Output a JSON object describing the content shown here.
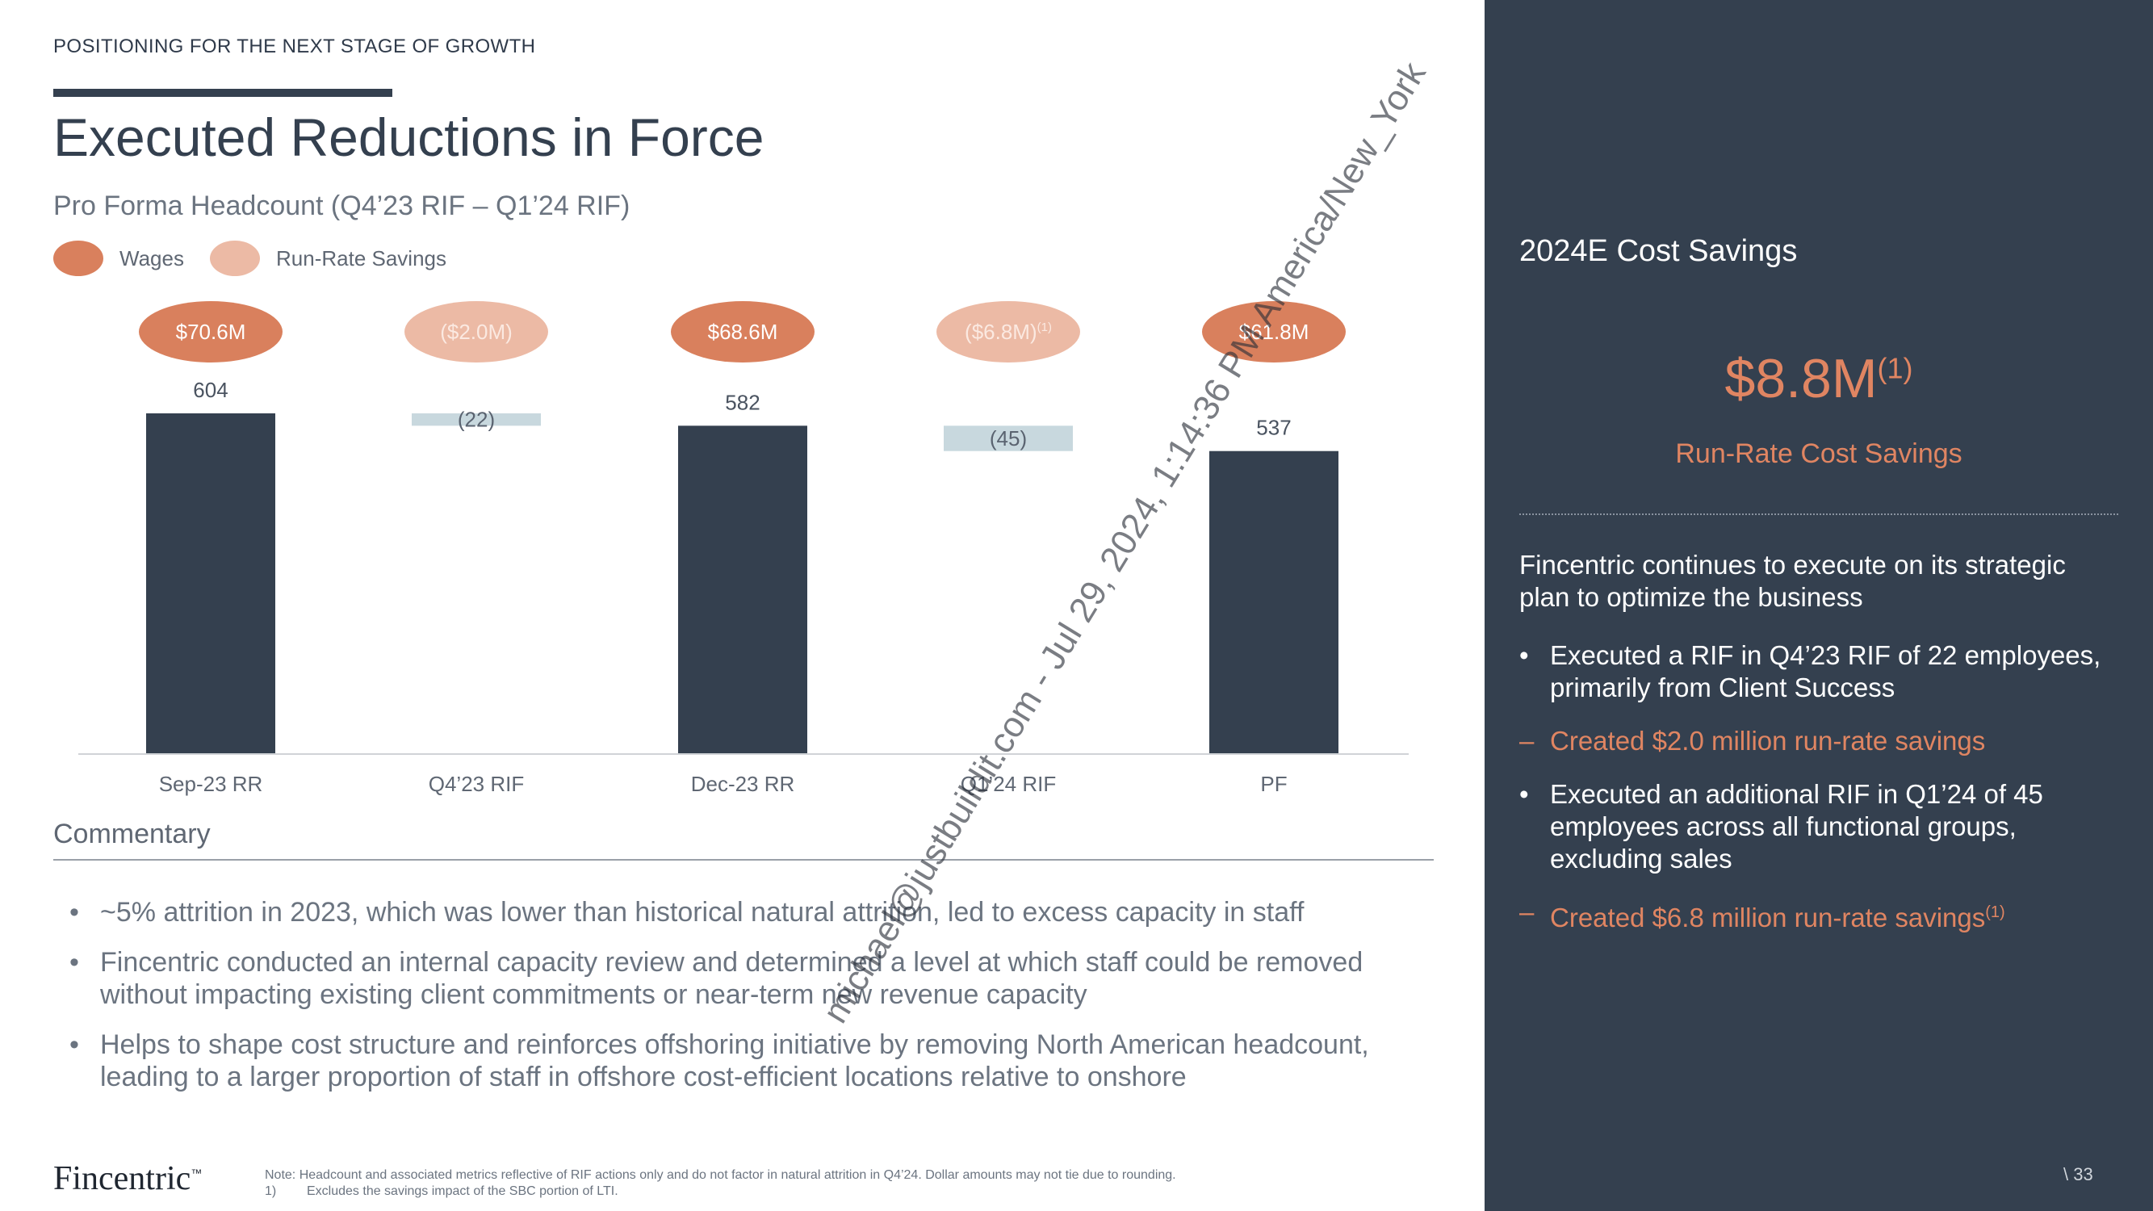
{
  "header": {
    "section_tag": "POSITIONING FOR THE NEXT STAGE OF GROWTH",
    "title": "Executed Reductions in Force",
    "subtitle": "Pro Forma Headcount (Q4’23 RIF – Q1’24 RIF)"
  },
  "legend": [
    {
      "label": "Wages",
      "color": "#d9805d"
    },
    {
      "label": "Run-Rate Savings",
      "color": "#ecbaa5"
    }
  ],
  "chart_data": {
    "type": "bar",
    "subtype": "waterfall",
    "categories": [
      "Sep-23 RR",
      "Q4’23 RIF",
      "Dec-23 RR",
      "Q1’24 RIF",
      "PF"
    ],
    "values": [
      604,
      -22,
      582,
      -45,
      537
    ],
    "bar_kinds": [
      "total",
      "delta",
      "total",
      "delta",
      "total"
    ],
    "value_labels": [
      "604",
      "(22)",
      "582",
      "(45)",
      "537"
    ],
    "pill_labels": [
      "$70.6M",
      "($2.0M)",
      "$68.6M",
      "($6.8M)",
      "$61.8M"
    ],
    "pill_kinds": [
      "wages",
      "savings",
      "wages",
      "savings",
      "wages"
    ],
    "pill_sups": [
      "",
      "",
      "",
      "(1)",
      ""
    ],
    "ylim": [
      0,
      604
    ],
    "colors": {
      "total": "#34404f",
      "delta": "#c8d8de",
      "wages": "#d9805d",
      "savings": "#ecbaa5",
      "axis": "#d0d3d7"
    }
  },
  "commentary": {
    "title": "Commentary",
    "bullets": [
      "~5% attrition in 2023, which was lower than historical natural attrition, led to excess capacity in staff",
      "Fincentric conducted an internal capacity review and determined a level at which staff could be removed without impacting existing client commitments or near-term new revenue capacity",
      "Helps to shape cost structure and reinforces offshoring initiative by removing North American headcount, leading to a larger proportion of staff in offshore cost-efficient locations relative to onshore"
    ]
  },
  "footer": {
    "logo": "Fincentric",
    "logo_tm": "™",
    "note": "Note: Headcount and associated metrics reflective of RIF actions only and do not factor in natural attrition in Q4’24. Dollar amounts may not tie due to rounding.",
    "fn1_num": "1)",
    "fn1_text": "Excludes the savings impact of the SBC portion of LTI.",
    "page": "\\ 33"
  },
  "panel": {
    "title": "2024E Cost Savings",
    "big_value": "$8.8M",
    "big_sup": "(1)",
    "big_label": "Run-Rate Cost Savings",
    "intro": "Fincentric continues to execute on its strategic plan to optimize the business",
    "bullet1": "Executed a RIF in Q4’23 RIF of 22 employees, primarily from Client Success",
    "sub1": "Created $2.0 million run-rate savings",
    "bullet2": "Executed an additional RIF in Q1’24 of 45 employees across all functional groups, excluding sales",
    "sub2": "Created $6.8 million run-rate savings",
    "sub2_sup": "(1)"
  },
  "watermark": "michael@justbuildit.com - Jul 29, 2024, 1:14:36 PM America/New_York"
}
